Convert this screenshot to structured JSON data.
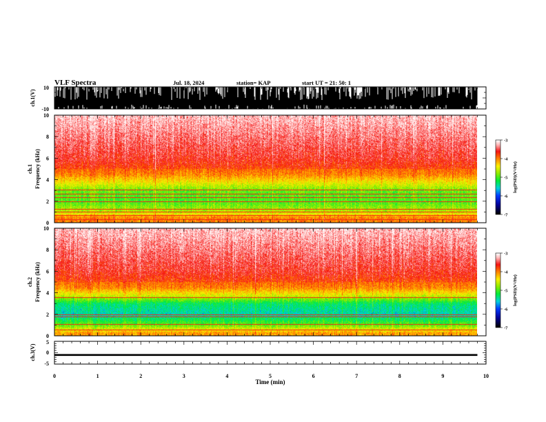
{
  "header": {
    "title": "VLF Spectra",
    "date": "Jul. 18, 2024",
    "station": "station= KAP",
    "start_ut": "start  UT =  21: 50: 1"
  },
  "chart_data": [
    {
      "type": "line",
      "panel": "ch1-waveform",
      "ylabel": "ch.1(V)",
      "ylim": [
        -10,
        10
      ],
      "yticks": [
        "10",
        "-10"
      ],
      "xlim": [
        0,
        10
      ],
      "description_values": {
        "amplitude_fill_range": [
          -10,
          10
        ],
        "ends_at_min": 9.8
      }
    },
    {
      "type": "heatmap",
      "panel": "ch1-spectrogram",
      "ylabel_top": "ch.1",
      "ylabel": "Frequency  (kHz)",
      "ylim": [
        0,
        10
      ],
      "yticks": [
        "0",
        "2",
        "4",
        "6",
        "8",
        "10"
      ],
      "xlim": [
        0,
        10
      ],
      "data_ends_at_min": 9.8,
      "colorbar": {
        "label": "log(PSD)(V²/Hz)",
        "range": [
          -7,
          -3
        ],
        "ticks": [
          "-3",
          "-4",
          "-5",
          "-6",
          "-7"
        ]
      },
      "profile": [
        {
          "freq_khz": 0.5,
          "log_psd": -4.0
        },
        {
          "freq_khz": 1.0,
          "log_psd": -4.6
        },
        {
          "freq_khz": 2.0,
          "log_psd": -5.0
        },
        {
          "freq_khz": 3.0,
          "log_psd": -4.9
        },
        {
          "freq_khz": 3.8,
          "log_psd": -4.4
        },
        {
          "freq_khz": 4.5,
          "log_psd": -4.0
        },
        {
          "freq_khz": 6.0,
          "log_psd": -3.7
        },
        {
          "freq_khz": 8.0,
          "log_psd": -3.5
        },
        {
          "freq_khz": 10.0,
          "log_psd": -3.3
        }
      ],
      "lines_khz": [
        0.3,
        0.7,
        1.0,
        1.3,
        2.0,
        2.4,
        2.7,
        3.1
      ]
    },
    {
      "type": "heatmap",
      "panel": "ch2-spectrogram",
      "ylabel_top": "ch.2",
      "ylabel": "Frequency  (kHz)",
      "ylim": [
        0,
        10
      ],
      "yticks": [
        "0",
        "2",
        "4",
        "6",
        "8",
        "10"
      ],
      "xlim": [
        0,
        10
      ],
      "data_ends_at_min": 9.8,
      "colorbar": {
        "label": "log(PSD)(V²/Hz)",
        "range": [
          -7,
          -3
        ],
        "ticks": [
          "-3",
          "-4",
          "-5",
          "-6",
          "-7"
        ]
      },
      "profile": [
        {
          "freq_khz": 0.3,
          "log_psd": -4.1
        },
        {
          "freq_khz": 1.0,
          "log_psd": -4.9
        },
        {
          "freq_khz": 2.0,
          "log_psd": -5.5
        },
        {
          "freq_khz": 3.0,
          "log_psd": -5.3
        },
        {
          "freq_khz": 3.8,
          "log_psd": -4.5
        },
        {
          "freq_khz": 4.5,
          "log_psd": -4.0
        },
        {
          "freq_khz": 6.0,
          "log_psd": -3.7
        },
        {
          "freq_khz": 8.0,
          "log_psd": -3.5
        },
        {
          "freq_khz": 10.0,
          "log_psd": -3.3
        }
      ],
      "lines_khz": [
        0.6,
        1.1,
        1.8,
        2.0,
        3.6
      ]
    },
    {
      "type": "line",
      "panel": "ch3-waveform",
      "ylabel": "ch.3(V)",
      "ylim": [
        -5,
        5
      ],
      "yticks": [
        "5",
        "0",
        "-5"
      ],
      "xlim": [
        0,
        10
      ],
      "xlabel": "Time  (min)",
      "xticks": [
        "0",
        "1",
        "2",
        "3",
        "4",
        "5",
        "6",
        "7",
        "8",
        "9",
        "10"
      ],
      "description_values": {
        "band_center_v": -1.0,
        "band_halfwidth_v": 0.4,
        "ends_at_min": 9.8
      }
    }
  ]
}
